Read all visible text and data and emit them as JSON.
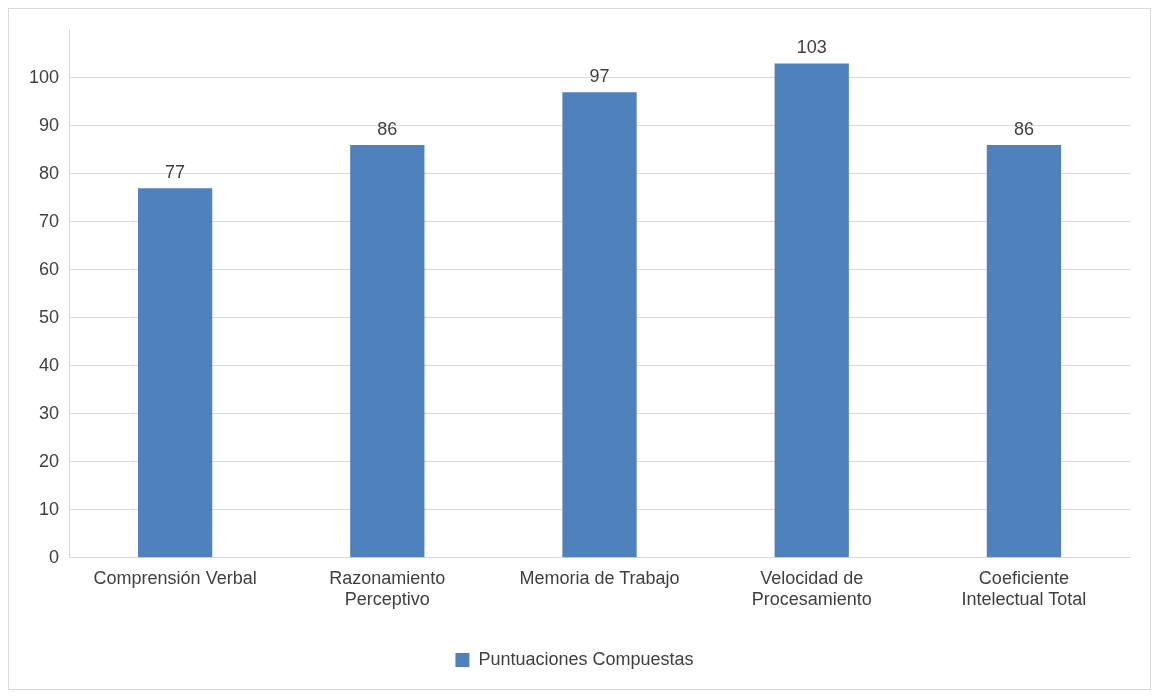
{
  "chart_data": {
    "type": "bar",
    "categories": [
      "Comprensión Verbal",
      "Razonamiento Perceptivo",
      "Memoria de Trabajo",
      "Velocidad de Procesamiento",
      "Coeficiente Intelectual Total"
    ],
    "series": [
      {
        "name": "Puntuaciones Compuestas",
        "color": "#4f81bd",
        "values": [
          77,
          86,
          97,
          103,
          86
        ]
      }
    ],
    "ylim": [
      0,
      110
    ],
    "yticks": [
      0,
      10,
      20,
      30,
      40,
      50,
      60,
      70,
      80,
      90,
      100
    ],
    "grid": "y",
    "legend": "bottom",
    "data_labels": true
  }
}
